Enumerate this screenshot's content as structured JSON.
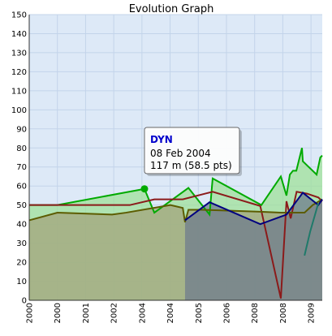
{
  "chart_data": {
    "type": "line",
    "title": "Evolution Graph",
    "xlim": [
      0,
      10.4
    ],
    "xticks": [
      {
        "value": 0,
        "label": "2000"
      },
      {
        "value": 1,
        "label": "2000"
      },
      {
        "value": 2,
        "label": "2001"
      },
      {
        "value": 3,
        "label": "2002"
      },
      {
        "value": 4,
        "label": "2004"
      },
      {
        "value": 5,
        "label": "2004"
      },
      {
        "value": 6,
        "label": "2005"
      },
      {
        "value": 7,
        "label": "2006"
      },
      {
        "value": 8,
        "label": "2008"
      },
      {
        "value": 9,
        "label": "2008"
      },
      {
        "value": 10,
        "label": "2009"
      }
    ],
    "ylim": [
      0,
      150
    ],
    "yticks": [
      0,
      10,
      20,
      30,
      40,
      50,
      60,
      70,
      80,
      90,
      100,
      110,
      120,
      130,
      140,
      150
    ],
    "grid": true,
    "series": [
      {
        "color": "#00aa00",
        "fill": "#9fe09a",
        "x": [
          0,
          1,
          4.09,
          4.44,
          5.65,
          6.4,
          6.51,
          8.24,
          8.93,
          9.13,
          9.25,
          9.36,
          9.48,
          9.68,
          9.71,
          10.2,
          10.33,
          10.4
        ],
        "values": [
          50,
          50,
          58.5,
          46,
          59,
          45,
          64,
          50,
          65,
          55,
          66,
          68,
          68,
          80,
          73,
          66,
          75,
          76
        ]
      },
      {
        "color": "#8b1a1a",
        "fill": null,
        "x": [
          0,
          3.57,
          4.44,
          5.45,
          6.51,
          8.2,
          8.93,
          9.13,
          9.28,
          9.49,
          9.86,
          10.26,
          10.4
        ],
        "values": [
          50,
          50,
          53,
          53,
          57,
          49.5,
          1,
          52,
          43,
          57,
          56,
          54,
          52
        ]
      },
      {
        "color": "#5c5c00",
        "fill": "#a3a47c",
        "x": [
          0,
          1,
          2.94,
          3.43,
          5.01,
          5.45,
          5.53,
          5.65,
          6.16,
          8.2,
          8.93,
          9.77,
          10.06,
          10.4
        ],
        "values": [
          42,
          46,
          45,
          46,
          50,
          48.5,
          41,
          47.5,
          47.5,
          46.5,
          46,
          46,
          50,
          53
        ]
      },
      {
        "color": "#000080",
        "fill": "#6f7c8e",
        "x": [
          5.53,
          6.4,
          8.2,
          9.13,
          9.71,
          10.26,
          10.4
        ],
        "values": [
          42,
          51.5,
          40,
          45,
          56.5,
          50,
          53
        ]
      },
      {
        "color": "#1f7a6a",
        "fill": null,
        "x": [
          9.77,
          9.97,
          10.26
        ],
        "values": [
          23.5,
          36,
          51
        ]
      }
    ],
    "tooltip": {
      "title": "DYN",
      "date": "08 Feb 2004",
      "text": "117 m (58.5 pts)"
    }
  }
}
